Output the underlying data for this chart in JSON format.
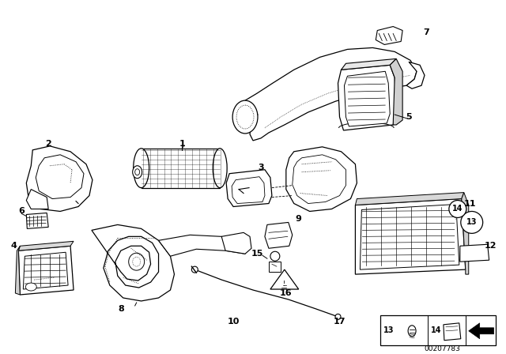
{
  "background_color": "#ffffff",
  "line_color": "#000000",
  "part_number": "00207783",
  "fig_width": 6.4,
  "fig_height": 4.48,
  "dpi": 100
}
